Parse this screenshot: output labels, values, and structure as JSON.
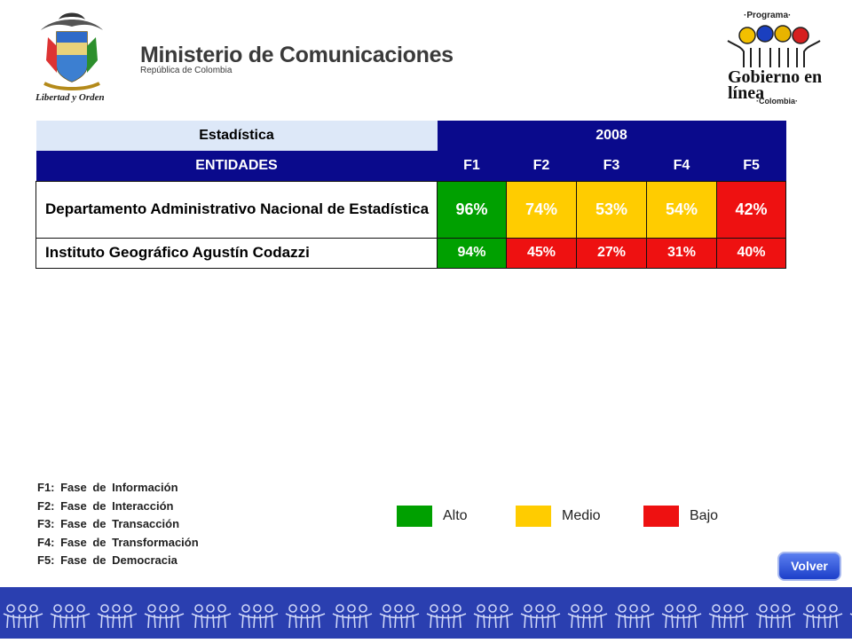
{
  "header": {
    "ministry_title": "Ministerio de Comunicaciones",
    "ministry_subtitle": "República de Colombia",
    "motto": "Libertad y Orden",
    "program_label": "·Programa·",
    "program_name": "Gobierno en línea",
    "program_country": "·Colombia·"
  },
  "table": {
    "stat_header": "Estadística",
    "year": "2008",
    "entities_header": "ENTIDADES",
    "phases": [
      "F1",
      "F2",
      "F3",
      "F4",
      "F5"
    ],
    "rows": [
      {
        "name": "Departamento Administrativo Nacional de Estadística",
        "values": [
          "96%",
          "74%",
          "53%",
          "54%",
          "42%"
        ],
        "levels": [
          "alto",
          "medio",
          "medio",
          "medio",
          "bajo"
        ]
      },
      {
        "name": "Instituto Geográfico Agustín Codazzi",
        "values": [
          "94%",
          "45%",
          "27%",
          "31%",
          "40%"
        ],
        "levels": [
          "alto",
          "bajo",
          "bajo",
          "bajo",
          "bajo"
        ]
      }
    ]
  },
  "notes": [
    "F1: Fase de Información",
    "F2: Fase de Interacción",
    "F3: Fase de Transacción",
    "F4: Fase de Transformación",
    "F5: Fase de Democracia"
  ],
  "legend": {
    "alto": "Alto",
    "medio": "Medio",
    "bajo": "Bajo"
  },
  "colors": {
    "alto": "#00a000",
    "medio": "#ffcc00",
    "bajo": "#ee1111",
    "header_dark": "#0a0a8c",
    "header_light": "#dde8f8",
    "footer": "#2a3fb0"
  },
  "buttons": {
    "volver": "Volver"
  }
}
